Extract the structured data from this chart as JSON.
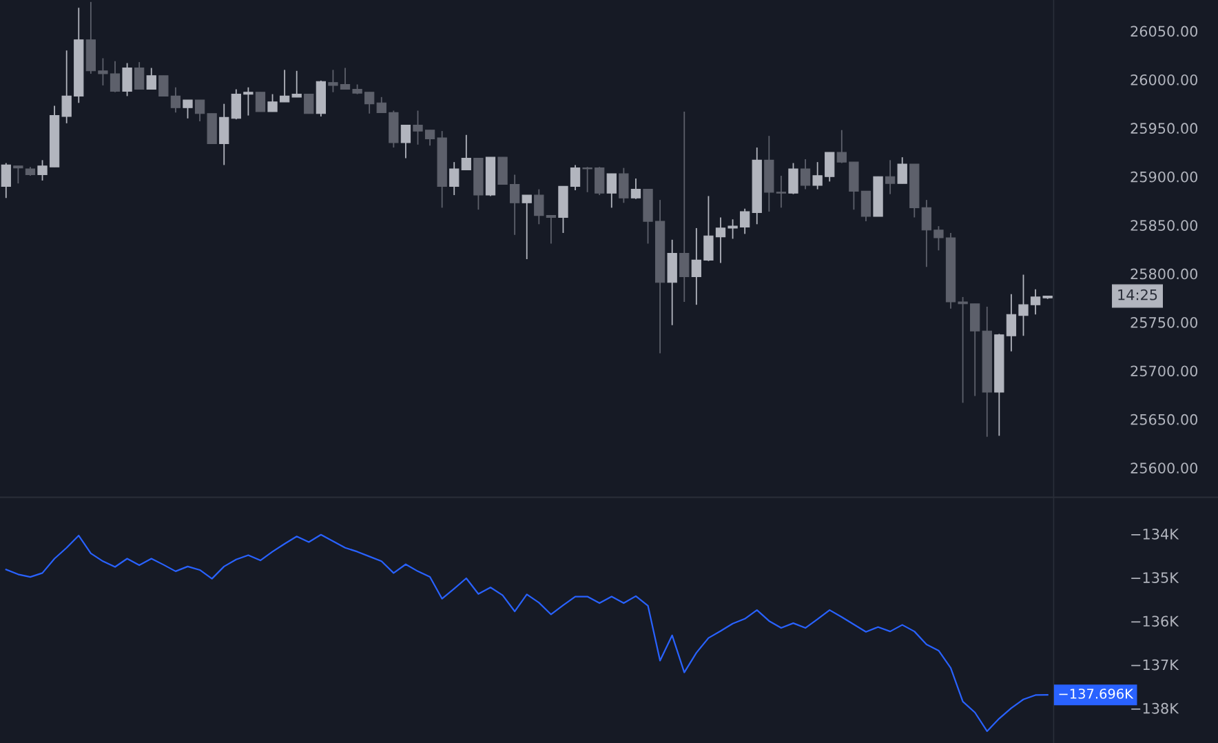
{
  "chart_data": [
    {
      "type": "candlestick",
      "categories": [
        null,
        null,
        null,
        null,
        null,
        null,
        null,
        null,
        null,
        null,
        null,
        null,
        null,
        null,
        null,
        null,
        null,
        null,
        null,
        null,
        null,
        null,
        null,
        null,
        null,
        null,
        null,
        null,
        null,
        null,
        null,
        null,
        null,
        null,
        null,
        null,
        null,
        null,
        null,
        null,
        null,
        null,
        null,
        null,
        null,
        null,
        null,
        null,
        null,
        null,
        null,
        null,
        null,
        null,
        null,
        null,
        null,
        null,
        null,
        null,
        null,
        null,
        null,
        null,
        null,
        null,
        null,
        null,
        null,
        null,
        null,
        null,
        null,
        null,
        null,
        null,
        null,
        null,
        null,
        null,
        null,
        null,
        null,
        null,
        null,
        null,
        null
      ],
      "ohlc": [
        [
          25890,
          25914,
          25878,
          25912
        ],
        [
          25911,
          25911,
          25893,
          25909
        ],
        [
          25908,
          25910,
          25901,
          25902
        ],
        [
          25902,
          25917,
          25896,
          25911
        ],
        [
          25910,
          25973,
          25910,
          25963
        ],
        [
          25962,
          26030,
          25955,
          25983
        ],
        [
          25983,
          26074,
          25976,
          26041
        ],
        [
          26041,
          26080,
          26006,
          26009
        ],
        [
          26009,
          26022,
          25994,
          26006
        ],
        [
          26006,
          26019,
          25987,
          25988
        ],
        [
          25988,
          26017,
          25983,
          26012
        ],
        [
          26012,
          26018,
          25990,
          25990
        ],
        [
          25990,
          26012,
          25990,
          26004
        ],
        [
          26004,
          26004,
          25983,
          25983
        ],
        [
          25983,
          25992,
          25966,
          25971
        ],
        [
          25971,
          25979,
          25960,
          25979
        ],
        [
          25979,
          25979,
          25957,
          25965
        ],
        [
          25965,
          25965,
          25934,
          25934
        ],
        [
          25934,
          25975,
          25912,
          25961
        ],
        [
          25960,
          25990,
          25959,
          25985
        ],
        [
          25985,
          25992,
          25963,
          25987
        ],
        [
          25987,
          25987,
          25967,
          25967
        ],
        [
          25967,
          25985,
          25967,
          25977
        ],
        [
          25977,
          26010,
          25977,
          25983
        ],
        [
          25982,
          26009,
          25982,
          25985
        ],
        [
          25985,
          25985,
          25965,
          25965
        ],
        [
          25965,
          25999,
          25962,
          25998
        ],
        [
          25997,
          26010,
          25987,
          25994
        ],
        [
          25995,
          26012,
          25990,
          25990
        ],
        [
          25990,
          25995,
          25985,
          25986
        ],
        [
          25987,
          25987,
          25965,
          25975
        ],
        [
          25976,
          25982,
          25966,
          25966
        ],
        [
          25966,
          25968,
          25930,
          25935
        ],
        [
          25935,
          25953,
          25919,
          25953
        ],
        [
          25953,
          25968,
          25933,
          25947
        ],
        [
          25948,
          25948,
          25932,
          25939
        ],
        [
          25940,
          25947,
          25868,
          25890
        ],
        [
          25890,
          25915,
          25881,
          25908
        ],
        [
          25907,
          25943,
          25907,
          25919
        ],
        [
          25919,
          25919,
          25866,
          25881
        ],
        [
          25881,
          25920,
          25880,
          25920
        ],
        [
          25920,
          25920,
          25892,
          25892
        ],
        [
          25892,
          25902,
          25840,
          25873
        ],
        [
          25873,
          25881,
          25815,
          25881
        ],
        [
          25881,
          25887,
          25851,
          25860
        ],
        [
          25860,
          25860,
          25831,
          25858
        ],
        [
          25858,
          25890,
          25842,
          25890
        ],
        [
          25890,
          25912,
          25886,
          25909
        ],
        [
          25909,
          25910,
          25884,
          25908
        ],
        [
          25909,
          25910,
          25881,
          25883
        ],
        [
          25883,
          25903,
          25868,
          25903
        ],
        [
          25903,
          25909,
          25873,
          25878
        ],
        [
          25878,
          25898,
          25877,
          25887
        ],
        [
          25887,
          25887,
          25831,
          25854
        ],
        [
          25854,
          25876,
          25718,
          25791
        ],
        [
          25791,
          25835,
          25747,
          25821
        ],
        [
          25821,
          25967,
          25771,
          25797
        ],
        [
          25797,
          25847,
          25768,
          25814
        ],
        [
          25814,
          25880,
          25813,
          25839
        ],
        [
          25838,
          25858,
          25811,
          25847
        ],
        [
          25847,
          25856,
          25836,
          25849
        ],
        [
          25848,
          25867,
          25841,
          25864
        ],
        [
          25863,
          25930,
          25851,
          25917
        ],
        [
          25917,
          25942,
          25864,
          25884
        ],
        [
          25884,
          25901,
          25868,
          25883
        ],
        [
          25883,
          25914,
          25882,
          25908
        ],
        [
          25908,
          25918,
          25887,
          25891
        ],
        [
          25891,
          25915,
          25887,
          25901
        ],
        [
          25900,
          25925,
          25895,
          25925
        ],
        [
          25925,
          25948,
          25914,
          25915
        ],
        [
          25915,
          25915,
          25866,
          25885
        ],
        [
          25885,
          25885,
          25854,
          25859
        ],
        [
          25859,
          25900,
          25859,
          25900
        ],
        [
          25900,
          25917,
          25882,
          25893
        ],
        [
          25893,
          25920,
          25893,
          25913
        ],
        [
          25913,
          25913,
          25858,
          25868
        ],
        [
          25868,
          25876,
          25807,
          25845
        ],
        [
          25845,
          25849,
          25824,
          25837
        ],
        [
          25837,
          25842,
          25764,
          25771
        ],
        [
          25771,
          25776,
          25667,
          25769
        ],
        [
          25769,
          25769,
          25674,
          25741
        ],
        [
          25741,
          25766,
          25632,
          25678
        ],
        [
          25678,
          25738,
          25633,
          25737
        ],
        [
          25736,
          25779,
          25720,
          25758
        ],
        [
          25757,
          25799,
          25736,
          25768
        ],
        [
          25768,
          25784,
          25758,
          25776
        ],
        [
          25775,
          25777,
          25774,
          25777
        ]
      ],
      "colors": [
        "#b2b5be",
        "#5d606b",
        "#5d606b",
        "#b2b5be",
        "#b2b5be",
        "#b2b5be",
        "#b2b5be",
        "#5d606b",
        "#5d606b",
        "#5d606b",
        "#b2b5be",
        "#5d606b",
        "#b2b5be",
        "#5d606b",
        "#5d606b",
        "#b2b5be",
        "#5d606b",
        "#5d606b",
        "#b2b5be",
        "#b2b5be",
        "#b2b5be",
        "#5d606b",
        "#b2b5be",
        "#b2b5be",
        "#b2b5be",
        "#5d606b",
        "#b2b5be",
        "#5d606b",
        "#5d606b",
        "#5d606b",
        "#5d606b",
        "#5d606b",
        "#5d606b",
        "#b2b5be",
        "#5d606b",
        "#5d606b",
        "#5d606b",
        "#b2b5be",
        "#b2b5be",
        "#5d606b",
        "#b2b5be",
        "#5d606b",
        "#5d606b",
        "#b2b5be",
        "#5d606b",
        "#5d606b",
        "#b2b5be",
        "#b2b5be",
        "#5d606b",
        "#5d606b",
        "#b2b5be",
        "#5d606b",
        "#b2b5be",
        "#5d606b",
        "#5d606b",
        "#b2b5be",
        "#5d606b",
        "#b2b5be",
        "#b2b5be",
        "#b2b5be",
        "#b2b5be",
        "#b2b5be",
        "#b2b5be",
        "#5d606b",
        "#5d606b",
        "#b2b5be",
        "#5d606b",
        "#b2b5be",
        "#b2b5be",
        "#5d606b",
        "#5d606b",
        "#5d606b",
        "#b2b5be",
        "#5d606b",
        "#b2b5be",
        "#5d606b",
        "#5d606b",
        "#5d606b",
        "#5d606b",
        "#5d606b",
        "#5d606b",
        "#5d606b",
        "#b2b5be",
        "#b2b5be",
        "#b2b5be",
        "#b2b5be",
        "#b2b5be"
      ],
      "ylim": [
        25570,
        26082
      ],
      "yticks": [
        {
          "value": 25600,
          "label": "25600.00"
        },
        {
          "value": 25650,
          "label": "25650.00"
        },
        {
          "value": 25700,
          "label": "25700.00"
        },
        {
          "value": 25750,
          "label": "25750.00"
        },
        {
          "value": 25800,
          "label": "25800.00"
        },
        {
          "value": 25850,
          "label": "25850.00"
        },
        {
          "value": 25900,
          "label": "25900.00"
        },
        {
          "value": 25950,
          "label": "25950.00"
        },
        {
          "value": 26000,
          "label": "26000.00"
        },
        {
          "value": 26050,
          "label": "26050.00"
        }
      ],
      "tick_labels": "y",
      "annotations": [
        "14:25"
      ]
    },
    {
      "type": "line",
      "categories": [
        null,
        null,
        null,
        null,
        null,
        null,
        null,
        null,
        null,
        null,
        null,
        null,
        null,
        null,
        null,
        null,
        null,
        null,
        null,
        null,
        null,
        null,
        null,
        null,
        null,
        null,
        null,
        null,
        null,
        null,
        null,
        null,
        null,
        null,
        null,
        null,
        null,
        null,
        null,
        null,
        null,
        null,
        null,
        null,
        null,
        null,
        null,
        null,
        null,
        null,
        null,
        null,
        null,
        null,
        null,
        null,
        null,
        null,
        null,
        null,
        null,
        null,
        null,
        null,
        null,
        null,
        null,
        null,
        null,
        null,
        null,
        null,
        null,
        null,
        null,
        null,
        null,
        null,
        null,
        null,
        null,
        null,
        null,
        null,
        null,
        null,
        null
      ],
      "series": [
        {
          "color": "#2962ff",
          "values": [
            -134820,
            -134930,
            -134990,
            -134900,
            -134570,
            -134320,
            -134040,
            -134450,
            -134630,
            -134760,
            -134570,
            -134720,
            -134570,
            -134710,
            -134860,
            -134750,
            -134830,
            -135030,
            -134750,
            -134590,
            -134490,
            -134610,
            -134410,
            -134230,
            -134060,
            -134190,
            -134020,
            -134170,
            -134320,
            -134410,
            -134520,
            -134630,
            -134900,
            -134700,
            -134860,
            -134990,
            -135490,
            -135260,
            -135020,
            -135380,
            -135230,
            -135410,
            -135780,
            -135390,
            -135580,
            -135850,
            -135640,
            -135440,
            -135440,
            -135590,
            -135440,
            -135590,
            -135430,
            -135650,
            -136910,
            -136330,
            -137180,
            -136730,
            -136390,
            -136230,
            -136060,
            -135950,
            -135750,
            -136000,
            -136160,
            -136050,
            -136160,
            -135960,
            -135750,
            -135910,
            -136080,
            -136250,
            -136140,
            -136240,
            -136090,
            -136240,
            -136540,
            -136680,
            -137080,
            -137850,
            -138100,
            -138530,
            -138240,
            -138000,
            -137800,
            -137700,
            -137696
          ]
        }
      ],
      "ylim": [
        -138800,
        -133170
      ],
      "yticks": [
        {
          "value": -138000,
          "label": "−138K"
        },
        {
          "value": -137000,
          "label": "−137K"
        },
        {
          "value": -136000,
          "label": "−136K"
        },
        {
          "value": -135000,
          "label": "−135K"
        },
        {
          "value": -134000,
          "label": "−134K"
        }
      ],
      "tick_labels": "y",
      "annotations": [
        "−137.696K"
      ]
    }
  ]
}
